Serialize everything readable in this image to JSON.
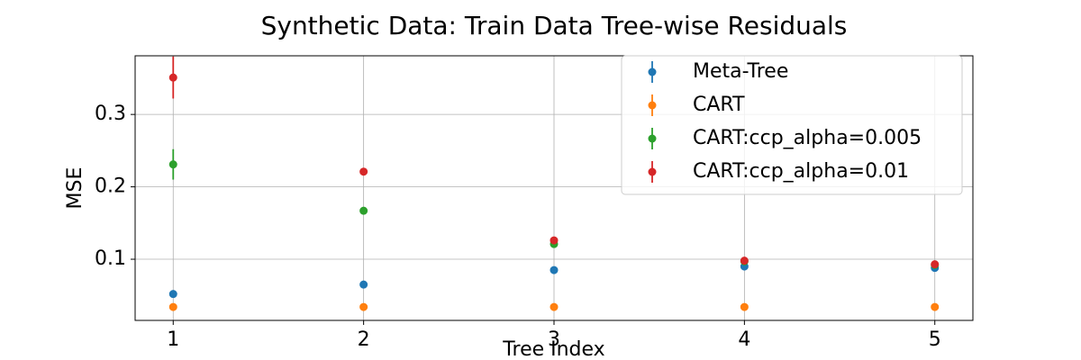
{
  "chart_data": {
    "type": "scatter",
    "title": "Synthetic Data: Train Data Tree-wise Residuals",
    "x_label": "Tree Index",
    "y_label": "MSE",
    "x": [
      1,
      2,
      3,
      4,
      5
    ],
    "series": [
      {
        "name": "Meta-Tree",
        "color": "#1f77b4",
        "values": [
          0.052,
          0.065,
          0.085,
          0.09,
          0.088
        ],
        "errors": [
          0.003,
          0.003,
          0.003,
          0.003,
          0.003
        ]
      },
      {
        "name": "CART",
        "color": "#ff7f0e",
        "values": [
          0.034,
          0.034,
          0.034,
          0.034,
          0.034
        ],
        "errors": [
          0.002,
          0.002,
          0.002,
          0.002,
          0.002
        ]
      },
      {
        "name": "CART:ccp_alpha=0.005",
        "color": "#2ca02c",
        "values": [
          0.231,
          0.167,
          0.121,
          0.097,
          0.092
        ],
        "errors": [
          0.021,
          0.004,
          0.004,
          0.003,
          0.003
        ]
      },
      {
        "name": "CART:ccp_alpha=0.01",
        "color": "#d62728",
        "values": [
          0.351,
          0.221,
          0.126,
          0.098,
          0.093
        ],
        "errors": [
          0.029,
          0.004,
          0.004,
          0.003,
          0.003
        ]
      }
    ],
    "xlim": [
      0.8,
      5.2
    ],
    "ylim": [
      0.0155,
      0.381
    ],
    "xticks": [
      1,
      2,
      3,
      4,
      5
    ],
    "yticks": [
      0.1,
      0.2,
      0.3
    ],
    "grid": true,
    "legend": "upper right"
  }
}
